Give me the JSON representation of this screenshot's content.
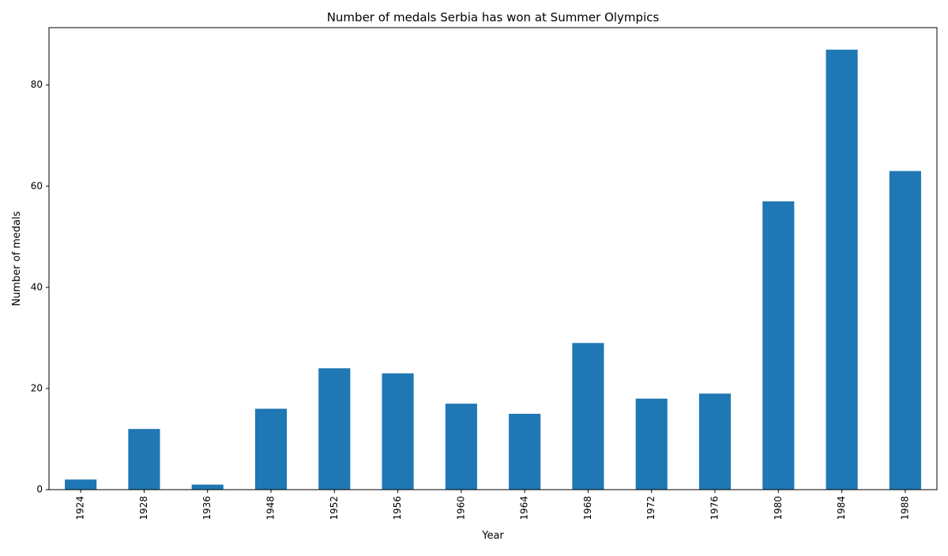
{
  "chart_data": {
    "type": "bar",
    "title": "Number of medals Serbia has won at Summer Olympics",
    "xlabel": "Year",
    "ylabel": "Number of medals",
    "categories": [
      "1924",
      "1928",
      "1936",
      "1948",
      "1952",
      "1956",
      "1960",
      "1964",
      "1968",
      "1972",
      "1976",
      "1980",
      "1984",
      "1988"
    ],
    "values": [
      2,
      12,
      1,
      16,
      24,
      23,
      17,
      15,
      29,
      18,
      19,
      57,
      87,
      63
    ],
    "ylim": [
      0,
      91.35
    ],
    "yticks": [
      0,
      20,
      40,
      60,
      80
    ],
    "bar_color": "#1f77b4",
    "grid": false,
    "legend": "none"
  }
}
